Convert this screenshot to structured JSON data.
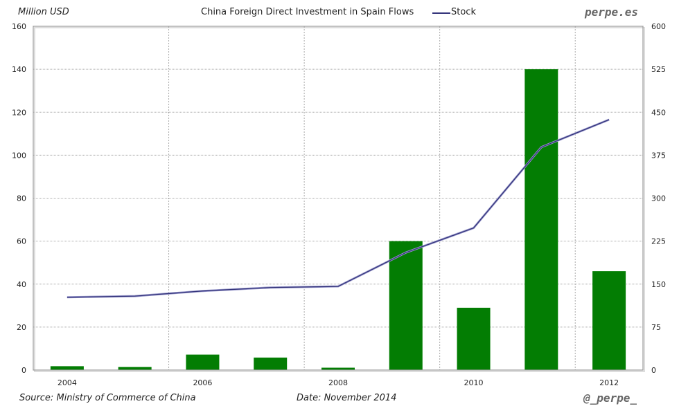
{
  "chart_data": {
    "type": "bar",
    "title": "China Foreign Direct Investment in Spain Flows",
    "ylabel": "Million USD",
    "categories": [
      "2004",
      "2005",
      "2006",
      "2007",
      "2008",
      "2009",
      "2010",
      "2011",
      "2012"
    ],
    "x_tick_labels": [
      "2004",
      "2006",
      "2008",
      "2010",
      "2012"
    ],
    "series": [
      {
        "name": "Flows",
        "type": "bar",
        "axis": "left",
        "color": "#037d03",
        "values": [
          1.8,
          1.4,
          7.2,
          5.8,
          1.1,
          60,
          29,
          140,
          46
        ]
      },
      {
        "name": "Stock",
        "type": "line",
        "axis": "right",
        "color": "#33337a",
        "values": [
          127,
          129,
          138,
          144,
          146,
          205,
          248,
          389,
          437
        ]
      }
    ],
    "ylim": [
      0,
      160
    ],
    "y_ticks": [
      0,
      20,
      40,
      60,
      80,
      100,
      120,
      140,
      160
    ],
    "y2lim": [
      0,
      600
    ],
    "y2_ticks": [
      0,
      75,
      150,
      225,
      300,
      375,
      450,
      525,
      600
    ],
    "grid": true,
    "legend": {
      "placement": "top-center",
      "entries": [
        "Stock"
      ]
    }
  },
  "labels": {
    "units": "Million USD",
    "brand": "perpe.es",
    "source": "Source: Ministry of Commerce of China",
    "date": "Date: November 2014",
    "handle": "@_perpe_"
  }
}
